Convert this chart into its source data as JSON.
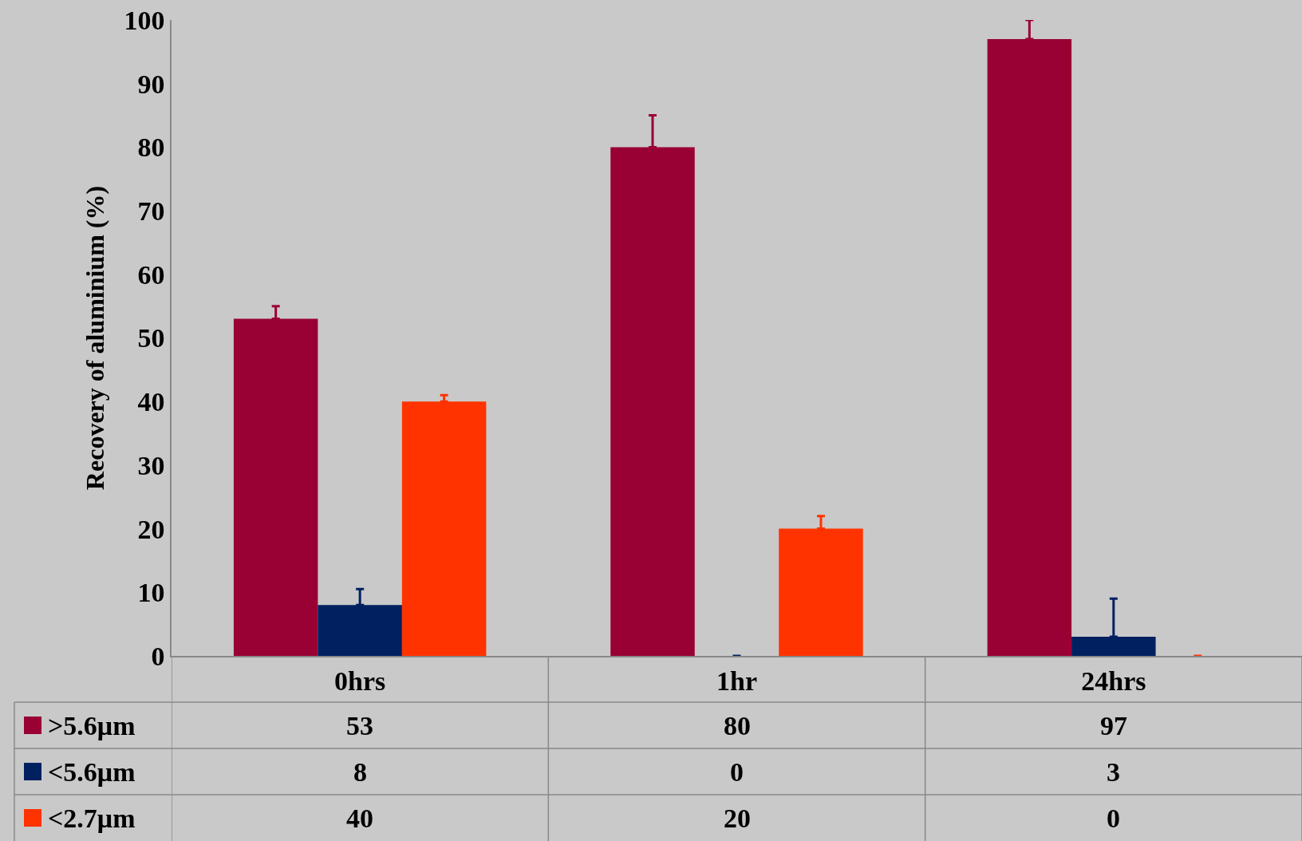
{
  "chart_data": {
    "type": "bar",
    "ylabel": "Recovery of aluminium (%)",
    "categories": [
      "0hrs",
      "1hr",
      "24hrs"
    ],
    "series": [
      {
        "name": ">5.6μm",
        "color": "#990033",
        "values": [
          53,
          80,
          97
        ],
        "errors": [
          2,
          5,
          3
        ]
      },
      {
        "name": "<5.6μm",
        "color": "#002060",
        "values": [
          8,
          0,
          3
        ],
        "errors": [
          2.5,
          null,
          6
        ]
      },
      {
        "name": "<2.7μm",
        "color": "#ff3300",
        "values": [
          40,
          20,
          0
        ],
        "errors": [
          1,
          2,
          null
        ]
      }
    ],
    "ylim": [
      0,
      100
    ],
    "yticks": [
      0,
      10,
      20,
      30,
      40,
      50,
      60,
      70,
      80,
      90,
      100
    ],
    "grid": false,
    "legend": "bottom left",
    "data_labels": true
  }
}
